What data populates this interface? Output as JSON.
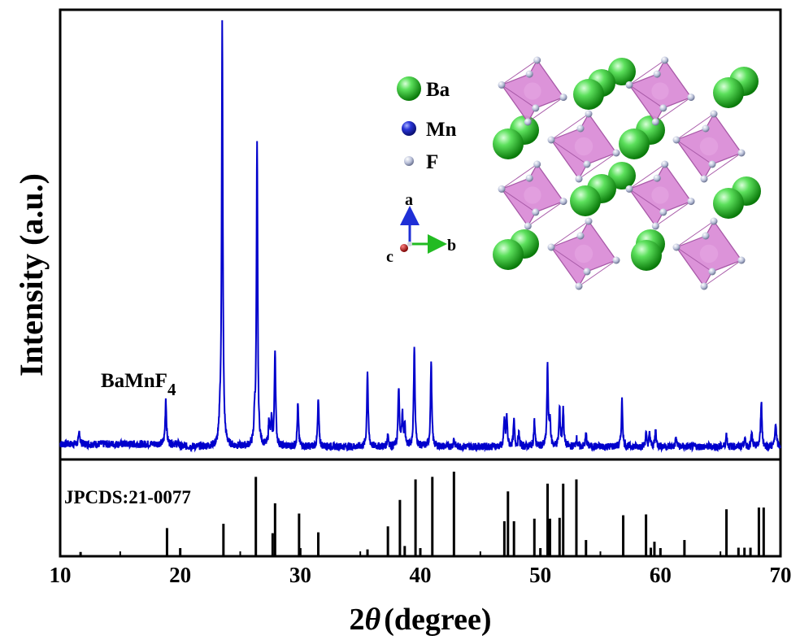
{
  "chart_data": {
    "type": "line",
    "xlim": [
      10,
      70
    ],
    "xticks": [
      "10",
      "20",
      "30",
      "40",
      "50",
      "60",
      "70"
    ],
    "xlabel": {
      "prefix": "2",
      "symbol": "θ",
      "unit": "(degree)"
    },
    "ylabel": "Intensity (a.u.)",
    "grid": false,
    "series": [
      {
        "name": "BaMnF4",
        "label_main": "BaMnF",
        "label_sub": "4",
        "color": "#0000cc",
        "baseline": 0.02,
        "peaks": [
          [
            11.6,
            0.03
          ],
          [
            18.8,
            0.11
          ],
          [
            23.3,
            0.05
          ],
          [
            23.5,
            1.0
          ],
          [
            26.2,
            0.06
          ],
          [
            26.4,
            0.71
          ],
          [
            27.4,
            0.06
          ],
          [
            27.6,
            0.06
          ],
          [
            27.9,
            0.23
          ],
          [
            29.8,
            0.1
          ],
          [
            31.5,
            0.11
          ],
          [
            35.6,
            0.18
          ],
          [
            37.3,
            0.03
          ],
          [
            38.2,
            0.14
          ],
          [
            38.5,
            0.08
          ],
          [
            38.7,
            0.05
          ],
          [
            39.5,
            0.24
          ],
          [
            40.9,
            0.2
          ],
          [
            42.8,
            0.02
          ],
          [
            47.0,
            0.06
          ],
          [
            47.2,
            0.07
          ],
          [
            47.8,
            0.06
          ],
          [
            48.2,
            0.03
          ],
          [
            49.5,
            0.06
          ],
          [
            50.6,
            0.19
          ],
          [
            50.8,
            0.06
          ],
          [
            51.6,
            0.09
          ],
          [
            51.9,
            0.09
          ],
          [
            53.0,
            0.02
          ],
          [
            53.8,
            0.03
          ],
          [
            56.8,
            0.11
          ],
          [
            58.8,
            0.03
          ],
          [
            59.1,
            0.03
          ],
          [
            59.6,
            0.04
          ],
          [
            61.3,
            0.02
          ],
          [
            65.5,
            0.03
          ],
          [
            67.0,
            0.02
          ],
          [
            67.6,
            0.03
          ],
          [
            68.4,
            0.11
          ],
          [
            69.6,
            0.06
          ]
        ]
      },
      {
        "name": "JPCDS:21-0077",
        "color": "#000000",
        "sticks": [
          [
            11.7,
            0.05
          ],
          [
            18.9,
            0.33
          ],
          [
            23.6,
            0.38
          ],
          [
            26.3,
            0.93
          ],
          [
            27.7,
            0.27
          ],
          [
            27.9,
            0.62
          ],
          [
            29.9,
            0.5
          ],
          [
            31.5,
            0.28
          ],
          [
            35.6,
            0.08
          ],
          [
            37.3,
            0.35
          ],
          [
            38.3,
            0.66
          ],
          [
            38.7,
            0.12
          ],
          [
            39.6,
            0.9
          ],
          [
            41.0,
            0.93
          ],
          [
            42.8,
            0.99
          ],
          [
            47.0,
            0.41
          ],
          [
            47.3,
            0.76
          ],
          [
            47.8,
            0.41
          ],
          [
            49.5,
            0.44
          ],
          [
            50.6,
            0.85
          ],
          [
            50.8,
            0.44
          ],
          [
            51.6,
            0.45
          ],
          [
            51.9,
            0.85
          ],
          [
            53.0,
            0.9
          ],
          [
            53.8,
            0.19
          ],
          [
            56.9,
            0.48
          ],
          [
            58.8,
            0.49
          ],
          [
            59.2,
            0.1
          ],
          [
            59.5,
            0.17
          ],
          [
            62.0,
            0.19
          ],
          [
            65.5,
            0.55
          ],
          [
            66.5,
            0.1
          ],
          [
            67.0,
            0.1
          ],
          [
            67.5,
            0.1
          ],
          [
            68.2,
            0.57
          ],
          [
            68.6,
            0.57
          ]
        ]
      }
    ]
  },
  "crystal_legend": [
    {
      "label": "Ba",
      "color": "#22bb22"
    },
    {
      "label": "Mn",
      "color": "#2222cc"
    },
    {
      "label": "F",
      "color": "#b0b8d0"
    }
  ],
  "axes_labels": {
    "a": "a",
    "b": "b",
    "c": "c"
  },
  "colors": {
    "octahedron": "#d98ad6",
    "octahedron_edge": "#a85aa8",
    "ba_sphere": "#22bb22",
    "f_atom": "#b8bfd8",
    "arrow_a": "#1f2fd6",
    "arrow_b": "#22bb22",
    "arrow_c": "#b01010"
  }
}
